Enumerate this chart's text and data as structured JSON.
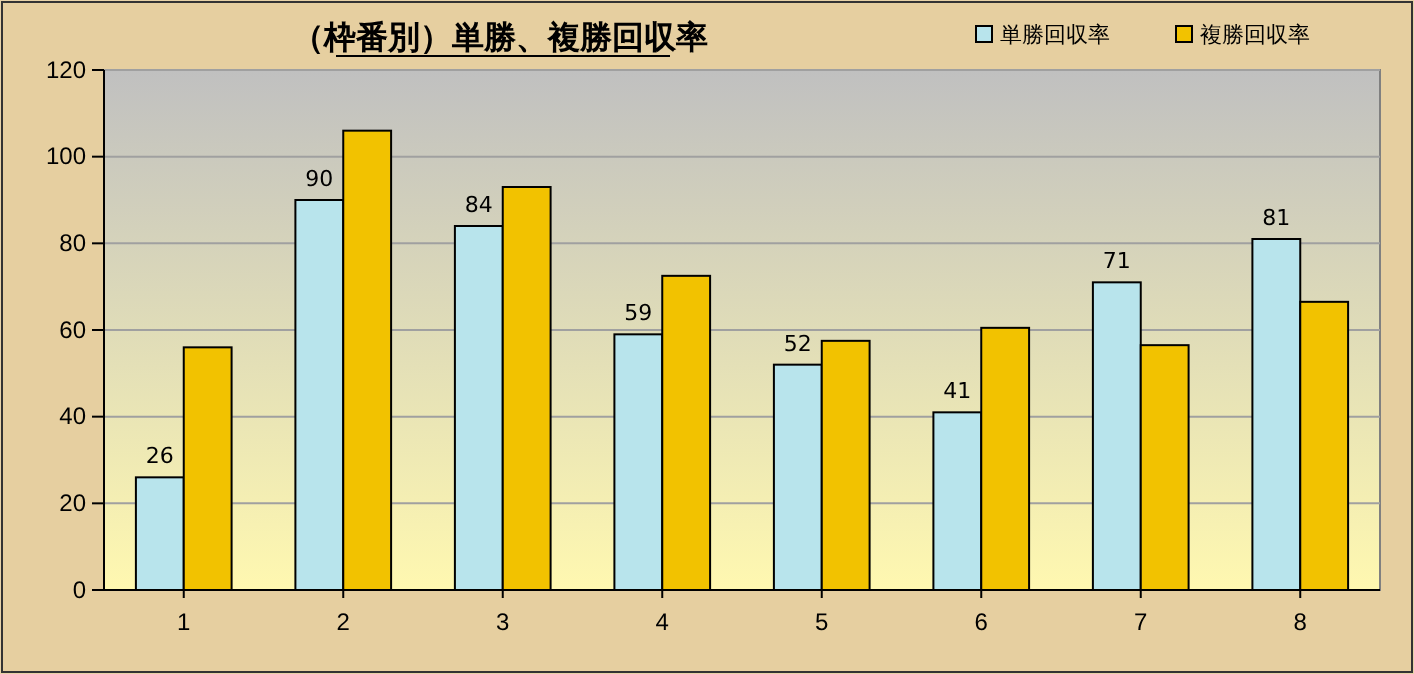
{
  "chart_data": {
    "type": "bar",
    "title": "（枠番別）単勝、複勝回収率",
    "categories": [
      "1",
      "2",
      "3",
      "4",
      "5",
      "6",
      "7",
      "8"
    ],
    "series": [
      {
        "name": "単勝回収率",
        "color": "#b8e4ec",
        "values": [
          26,
          90,
          84,
          59,
          52,
          41,
          71,
          81
        ],
        "value_labels": [
          "26",
          "90",
          "84",
          "59",
          "52",
          "41",
          "71",
          "81"
        ]
      },
      {
        "name": "複勝回収率",
        "color": "#f2c200",
        "values": [
          56,
          106,
          93,
          72.5,
          57.5,
          60.5,
          56.5,
          66.5
        ]
      }
    ],
    "ylim": [
      0,
      120
    ],
    "yticks": [
      0,
      20,
      40,
      60,
      80,
      100,
      120
    ],
    "grid": "y",
    "legend": "top right"
  }
}
